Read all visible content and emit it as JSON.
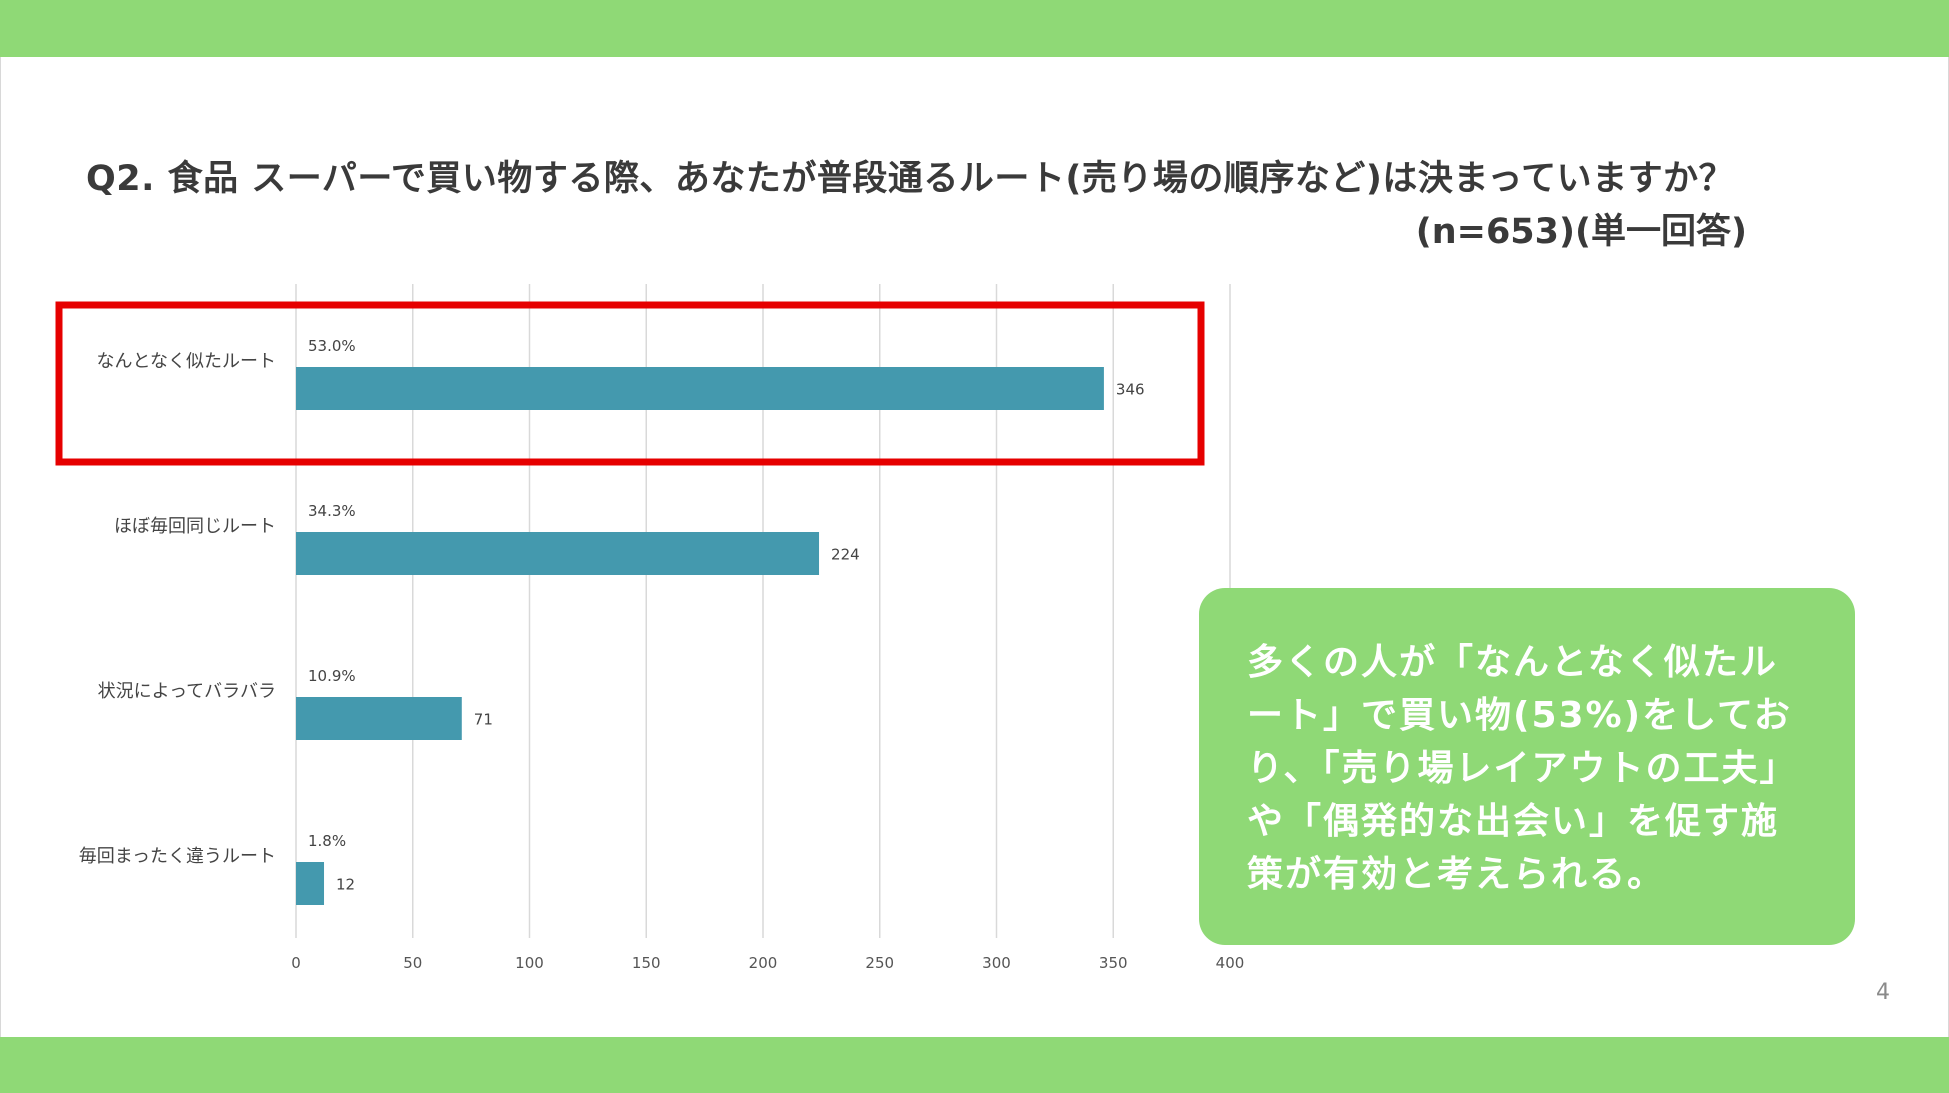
{
  "slide": {
    "title": "Q2. 食品 スーパーで買い物する際、あなたが普段通るルート(売り場の順序など)は決まっていますか？",
    "subtitle": "(n=653)(単一回答)",
    "page_number": "4",
    "callout_text": "多くの人が「なんとなく似たルート」で買い物(53%)をしており、「売り場レイアウトの工夫」や「偶発的な出会い」を促す施策が有効と考えられる。"
  },
  "colors": {
    "band": "#8fd976",
    "bar": "#4499ae",
    "highlight_border": "#e60000",
    "callout_bg": "#8fd976",
    "grid": "#d9d9d9"
  },
  "chart_data": {
    "type": "bar",
    "orientation": "horizontal",
    "categories": [
      "なんとなく似たルート",
      "ほぼ毎回同じルート",
      "状況によってバラバラ",
      "毎回まったく違うルート"
    ],
    "values": [
      346,
      224,
      71,
      12
    ],
    "percent_labels": [
      "53.0%",
      "34.3%",
      "10.9%",
      "1.8%"
    ],
    "xlim": [
      0,
      400
    ],
    "xticks": [
      0,
      50,
      100,
      150,
      200,
      250,
      300,
      350,
      400
    ],
    "grid": true,
    "highlighted_category_index": 0
  }
}
